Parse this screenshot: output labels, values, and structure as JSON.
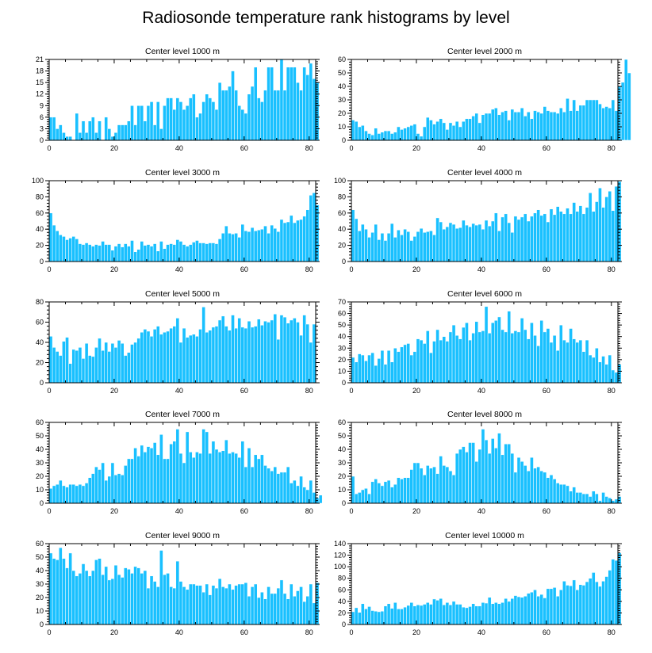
{
  "figure": {
    "title": "Radiosonde temperature rank histograms by level",
    "bar_color": "#19c0ff",
    "bar_edge_color": "#ffffff",
    "axis_color": "#000000"
  },
  "chart_data": [
    {
      "type": "bar",
      "title": "Center level 1000 m",
      "xlabel": "",
      "ylabel": "",
      "xlim": [
        0,
        82
      ],
      "ylim": [
        0,
        21
      ],
      "xticks": [
        0,
        20,
        40,
        60,
        80
      ],
      "yticks": [
        0,
        3,
        6,
        9,
        12,
        15,
        18,
        21
      ],
      "values": [
        6,
        6,
        3,
        4,
        2,
        1,
        1,
        0,
        7,
        2,
        5,
        2,
        5,
        6,
        2,
        5,
        0,
        6,
        3,
        1,
        2,
        4,
        4,
        4,
        5,
        9,
        4,
        9,
        9,
        5,
        9,
        10,
        4,
        10,
        3,
        9,
        11,
        11,
        8,
        11,
        10,
        8,
        9,
        11,
        12,
        6,
        7,
        10,
        12,
        11,
        10,
        8,
        15,
        13,
        13,
        14,
        18,
        13,
        9,
        8,
        7,
        12,
        14,
        19,
        11,
        10,
        13,
        19,
        19,
        13,
        13,
        21,
        13,
        19,
        19,
        19,
        15,
        13,
        19,
        17,
        20,
        16,
        15
      ]
    },
    {
      "type": "bar",
      "title": "Center level 2000 m",
      "xlabel": "",
      "ylabel": "",
      "xlim": [
        0,
        82
      ],
      "ylim": [
        0,
        60
      ],
      "xticks": [
        0,
        20,
        40,
        60,
        80
      ],
      "yticks": [
        0,
        10,
        20,
        30,
        40,
        50,
        60
      ],
      "values": [
        15,
        14,
        10,
        11,
        7,
        5,
        4,
        9,
        5,
        6,
        7,
        7,
        5,
        6,
        10,
        8,
        9,
        10,
        11,
        12,
        5,
        3,
        10,
        17,
        15,
        12,
        14,
        16,
        13,
        8,
        13,
        11,
        14,
        10,
        14,
        16,
        16,
        18,
        20,
        13,
        19,
        20,
        20,
        23,
        24,
        19,
        21,
        22,
        15,
        23,
        21,
        21,
        24,
        18,
        21,
        16,
        22,
        21,
        20,
        25,
        22,
        21,
        21,
        20,
        24,
        21,
        31,
        22,
        30,
        22,
        26,
        26,
        30,
        30,
        30,
        30,
        27,
        24,
        25,
        24,
        30,
        22,
        40,
        43,
        60,
        50
      ]
    },
    {
      "type": "bar",
      "title": "Center level 3000 m",
      "xlabel": "",
      "ylabel": "",
      "xlim": [
        0,
        82
      ],
      "ylim": [
        0,
        100
      ],
      "xticks": [
        0,
        20,
        40,
        60,
        80
      ],
      "yticks": [
        0,
        20,
        40,
        60,
        80,
        100
      ],
      "values": [
        60,
        45,
        38,
        33,
        31,
        27,
        29,
        31,
        28,
        22,
        21,
        23,
        21,
        19,
        21,
        20,
        25,
        21,
        21,
        14,
        19,
        22,
        18,
        22,
        19,
        26,
        12,
        15,
        25,
        20,
        21,
        19,
        22,
        13,
        25,
        16,
        21,
        22,
        21,
        27,
        25,
        21,
        19,
        21,
        24,
        26,
        23,
        23,
        22,
        23,
        23,
        22,
        28,
        35,
        44,
        35,
        34,
        35,
        30,
        46,
        38,
        37,
        42,
        38,
        39,
        40,
        44,
        35,
        45,
        41,
        37,
        52,
        48,
        49,
        57,
        48,
        51,
        52,
        56,
        64,
        82,
        85,
        70
      ]
    },
    {
      "type": "bar",
      "title": "Center level 4000 m",
      "xlabel": "",
      "ylabel": "",
      "xlim": [
        0,
        82
      ],
      "ylim": [
        0,
        100
      ],
      "xticks": [
        0,
        20,
        40,
        60,
        80
      ],
      "yticks": [
        0,
        20,
        40,
        60,
        80,
        100
      ],
      "values": [
        64,
        53,
        38,
        46,
        40,
        30,
        36,
        46,
        27,
        35,
        26,
        35,
        47,
        30,
        39,
        33,
        40,
        37,
        26,
        31,
        37,
        41,
        36,
        37,
        38,
        33,
        54,
        49,
        40,
        43,
        48,
        46,
        41,
        42,
        51,
        45,
        43,
        47,
        45,
        46,
        40,
        51,
        44,
        50,
        60,
        38,
        55,
        59,
        48,
        36,
        56,
        52,
        55,
        59,
        50,
        56,
        60,
        64,
        57,
        59,
        49,
        65,
        58,
        68,
        62,
        59,
        66,
        59,
        73,
        62,
        69,
        59,
        67,
        85,
        62,
        74,
        91,
        67,
        80,
        87,
        63,
        93,
        99
      ]
    },
    {
      "type": "bar",
      "title": "Center level 5000 m",
      "xlabel": "",
      "ylabel": "",
      "xlim": [
        0,
        82
      ],
      "ylim": [
        0,
        80
      ],
      "xticks": [
        0,
        20,
        40,
        60,
        80
      ],
      "yticks": [
        0,
        20,
        40,
        60,
        80
      ],
      "values": [
        46,
        35,
        31,
        27,
        41,
        45,
        19,
        33,
        32,
        35,
        24,
        39,
        27,
        26,
        35,
        44,
        32,
        40,
        31,
        39,
        35,
        42,
        39,
        27,
        30,
        38,
        40,
        44,
        50,
        53,
        51,
        46,
        53,
        56,
        48,
        50,
        51,
        54,
        56,
        64,
        40,
        54,
        45,
        47,
        48,
        46,
        53,
        75,
        50,
        52,
        55,
        56,
        62,
        66,
        56,
        52,
        67,
        54,
        64,
        55,
        54,
        61,
        55,
        56,
        63,
        57,
        61,
        60,
        62,
        68,
        43,
        67,
        65,
        59,
        62,
        64,
        60,
        47,
        67,
        58,
        40,
        58
      ]
    },
    {
      "type": "bar",
      "title": "Center level 6000 m",
      "xlabel": "",
      "ylabel": "",
      "xlim": [
        0,
        82
      ],
      "ylim": [
        0,
        70
      ],
      "xticks": [
        0,
        20,
        40,
        60,
        80
      ],
      "yticks": [
        0,
        10,
        20,
        30,
        40,
        50,
        60,
        70
      ],
      "values": [
        22,
        18,
        25,
        24,
        19,
        24,
        26,
        15,
        21,
        28,
        16,
        28,
        18,
        30,
        27,
        31,
        33,
        34,
        24,
        27,
        38,
        37,
        34,
        45,
        26,
        36,
        46,
        37,
        40,
        36,
        44,
        50,
        41,
        38,
        48,
        52,
        37,
        43,
        53,
        44,
        45,
        66,
        43,
        52,
        54,
        57,
        46,
        44,
        62,
        43,
        45,
        44,
        56,
        46,
        38,
        52,
        41,
        32,
        54,
        44,
        47,
        35,
        41,
        28,
        50,
        37,
        35,
        47,
        38,
        35,
        37,
        27,
        37,
        24,
        22,
        30,
        18,
        23,
        16,
        24,
        11,
        9,
        16
      ]
    },
    {
      "type": "bar",
      "title": "Center level 7000 m",
      "xlabel": "",
      "ylabel": "",
      "xlim": [
        0,
        82
      ],
      "ylim": [
        0,
        60
      ],
      "xticks": [
        0,
        20,
        40,
        60,
        80
      ],
      "yticks": [
        0,
        10,
        20,
        30,
        40,
        50,
        60
      ],
      "values": [
        11,
        13,
        14,
        17,
        13,
        12,
        14,
        14,
        13,
        14,
        13,
        15,
        19,
        22,
        27,
        25,
        30,
        17,
        20,
        30,
        21,
        22,
        21,
        28,
        33,
        33,
        41,
        35,
        43,
        38,
        42,
        41,
        45,
        36,
        51,
        33,
        33,
        44,
        46,
        55,
        37,
        30,
        53,
        38,
        34,
        38,
        37,
        55,
        53,
        37,
        46,
        40,
        38,
        39,
        47,
        37,
        38,
        37,
        34,
        46,
        27,
        41,
        27,
        36,
        33,
        36,
        28,
        26,
        24,
        27,
        22,
        23,
        23,
        27,
        15,
        17,
        13,
        20,
        12,
        10,
        17,
        8,
        4,
        6
      ]
    },
    {
      "type": "bar",
      "title": "Center level 8000 m",
      "xlabel": "",
      "ylabel": "",
      "xlim": [
        0,
        82
      ],
      "ylim": [
        0,
        60
      ],
      "xticks": [
        0,
        20,
        40,
        60,
        80
      ],
      "yticks": [
        0,
        10,
        20,
        30,
        40,
        50,
        60
      ],
      "values": [
        20,
        7,
        8,
        10,
        11,
        7,
        16,
        18,
        15,
        13,
        16,
        17,
        12,
        14,
        19,
        18,
        19,
        19,
        25,
        30,
        30,
        26,
        21,
        28,
        26,
        27,
        22,
        35,
        28,
        27,
        24,
        21,
        37,
        40,
        42,
        38,
        45,
        45,
        31,
        40,
        55,
        47,
        37,
        48,
        41,
        52,
        36,
        44,
        44,
        37,
        23,
        34,
        31,
        28,
        24,
        34,
        26,
        27,
        24,
        23,
        19,
        21,
        18,
        15,
        14,
        14,
        13,
        9,
        12,
        8,
        8,
        7,
        7,
        5,
        9,
        7,
        2,
        8,
        5,
        4,
        2,
        3,
        5
      ]
    },
    {
      "type": "bar",
      "title": "Center level 9000 m",
      "xlabel": "",
      "ylabel": "",
      "xlim": [
        0,
        82
      ],
      "ylim": [
        0,
        60
      ],
      "xticks": [
        0,
        20,
        40,
        60,
        80
      ],
      "yticks": [
        0,
        10,
        20,
        30,
        40,
        50,
        60
      ],
      "values": [
        53,
        49,
        48,
        57,
        49,
        42,
        53,
        40,
        36,
        38,
        45,
        40,
        36,
        40,
        48,
        49,
        37,
        43,
        33,
        34,
        44,
        37,
        35,
        42,
        41,
        38,
        43,
        42,
        38,
        40,
        27,
        36,
        32,
        28,
        55,
        37,
        38,
        28,
        27,
        47,
        32,
        28,
        26,
        30,
        30,
        29,
        29,
        24,
        30,
        22,
        29,
        27,
        34,
        28,
        27,
        30,
        26,
        29,
        30,
        30,
        31,
        21,
        28,
        30,
        20,
        24,
        19,
        28,
        23,
        23,
        27,
        33,
        23,
        19,
        30,
        21,
        25,
        28,
        17,
        21,
        30,
        16,
        31
      ]
    },
    {
      "type": "bar",
      "title": "Center level 10000 m",
      "xlabel": "",
      "ylabel": "",
      "xlim": [
        0,
        82
      ],
      "ylim": [
        0,
        140
      ],
      "xticks": [
        0,
        20,
        40,
        60,
        80
      ],
      "yticks": [
        0,
        20,
        40,
        60,
        80,
        100,
        120,
        140
      ],
      "values": [
        22,
        29,
        21,
        36,
        27,
        31,
        24,
        23,
        22,
        23,
        32,
        36,
        28,
        38,
        27,
        27,
        30,
        33,
        38,
        32,
        34,
        33,
        35,
        38,
        35,
        44,
        42,
        45,
        34,
        38,
        34,
        40,
        35,
        35,
        30,
        29,
        31,
        36,
        32,
        32,
        38,
        37,
        47,
        36,
        38,
        36,
        38,
        45,
        40,
        45,
        50,
        48,
        47,
        49,
        54,
        56,
        60,
        49,
        52,
        46,
        62,
        62,
        64,
        49,
        60,
        75,
        68,
        67,
        77,
        60,
        69,
        68,
        74,
        80,
        90,
        74,
        66,
        75,
        83,
        94,
        113,
        111,
        124
      ]
    }
  ]
}
